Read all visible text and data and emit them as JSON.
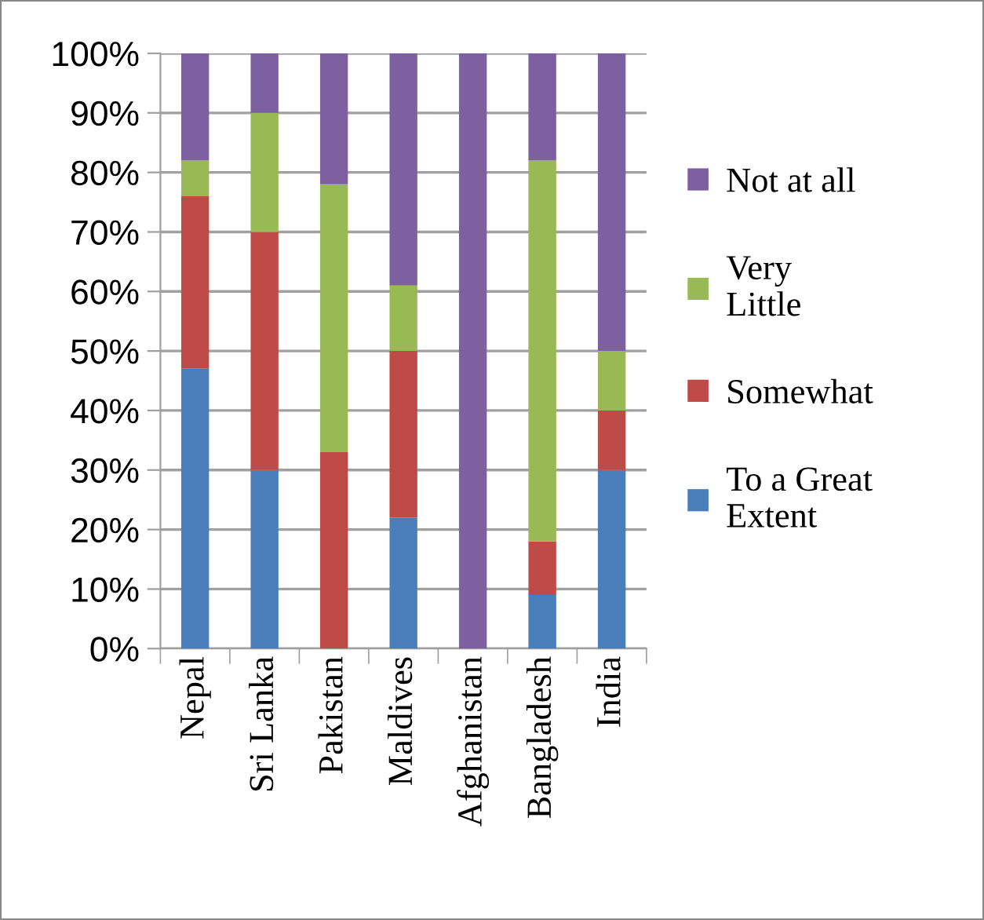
{
  "chart_data": {
    "type": "bar",
    "stacked": true,
    "categories": [
      "Nepal",
      "Sri Lanka",
      "Pakistan",
      "Maldives",
      "Afghanistan",
      "Bangladesh",
      "India"
    ],
    "series": [
      {
        "name": "To a Great Extent",
        "color": "#4a7ebb",
        "values": [
          47,
          30,
          0,
          22,
          0,
          9,
          30
        ]
      },
      {
        "name": "Somewhat",
        "color": "#be4b48",
        "values": [
          29,
          40,
          33,
          28,
          0,
          9,
          10
        ]
      },
      {
        "name": "Very Little",
        "color": "#98b954",
        "values": [
          6,
          20,
          45,
          11,
          0,
          64,
          10
        ]
      },
      {
        "name": "Not at all",
        "color": "#7d60a0",
        "values": [
          18,
          10,
          22,
          39,
          100,
          18,
          50
        ]
      }
    ],
    "ylim": [
      0,
      100
    ],
    "yticks": [
      {
        "value": 0,
        "label": "0%"
      },
      {
        "value": 10,
        "label": "10%"
      },
      {
        "value": 20,
        "label": "20%"
      },
      {
        "value": 30,
        "label": "30%"
      },
      {
        "value": 40,
        "label": "40%"
      },
      {
        "value": 50,
        "label": "50%"
      },
      {
        "value": 60,
        "label": "60%"
      },
      {
        "value": 70,
        "label": "70%"
      },
      {
        "value": 80,
        "label": "80%"
      },
      {
        "value": 90,
        "label": "90%"
      },
      {
        "value": 100,
        "label": "100%"
      }
    ],
    "grid": "y",
    "legend": "right"
  }
}
